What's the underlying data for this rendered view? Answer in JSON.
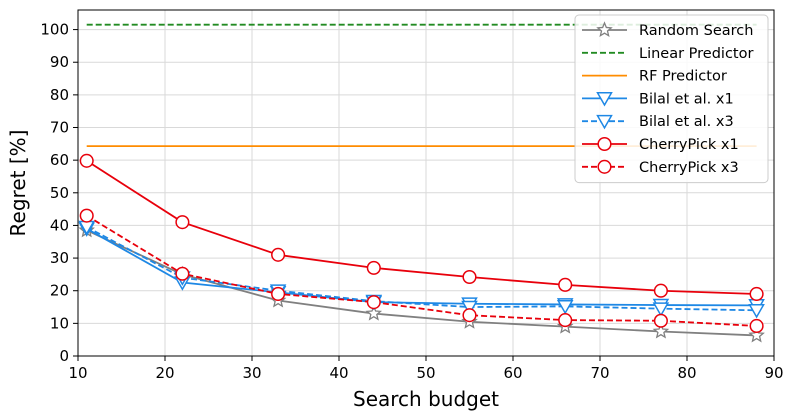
{
  "chart_data": {
    "type": "line",
    "title": "",
    "xlabel": "Search budget",
    "ylabel": "Regret [%]",
    "xlim": [
      10,
      90
    ],
    "ylim": [
      0,
      106
    ],
    "xticks": [
      10,
      20,
      30,
      40,
      50,
      60,
      70,
      80,
      90
    ],
    "yticks": [
      0,
      10,
      20,
      30,
      40,
      50,
      60,
      70,
      80,
      90,
      100
    ],
    "grid": true,
    "legend_position": "top-right",
    "series": [
      {
        "name": "Random Search",
        "color": "#808080",
        "dash": "solid",
        "marker": "star",
        "x": [
          11,
          22,
          33,
          44,
          55,
          66,
          77,
          88
        ],
        "y": [
          38.5,
          25,
          17,
          13,
          10.5,
          9,
          7.5,
          6.3
        ]
      },
      {
        "name": "Linear Predictor",
        "color": "#228B22",
        "dash": "dashed",
        "marker": "none",
        "x": [
          11,
          88
        ],
        "y": [
          101.5,
          101.5
        ]
      },
      {
        "name": "RF Predictor",
        "color": "#FF8C00",
        "dash": "solid",
        "marker": "none",
        "x": [
          11,
          88
        ],
        "y": [
          64.3,
          64.3
        ]
      },
      {
        "name": "Bilal et al. x1",
        "color": "#1E88E5",
        "dash": "solid",
        "marker": "triangle-down",
        "x": [
          11,
          22,
          33,
          44,
          55,
          66,
          77,
          88
        ],
        "y": [
          39,
          22.5,
          19.5,
          16.5,
          16,
          15.8,
          15.6,
          15.5
        ]
      },
      {
        "name": "Bilal et al. x3",
        "color": "#1E88E5",
        "dash": "dashed",
        "marker": "triangle-down",
        "x": [
          11,
          22,
          33,
          44,
          55,
          66,
          77,
          88
        ],
        "y": [
          39.5,
          24,
          20,
          16.8,
          15,
          15.2,
          14.5,
          14
        ]
      },
      {
        "name": "CherryPick x1",
        "color": "#E8000B",
        "dash": "solid",
        "marker": "circle",
        "x": [
          11,
          22,
          33,
          44,
          55,
          66,
          77,
          88
        ],
        "y": [
          59.8,
          41,
          31,
          27,
          24.2,
          21.8,
          20,
          19
        ]
      },
      {
        "name": "CherryPick x3",
        "color": "#E8000B",
        "dash": "dashed",
        "marker": "circle",
        "x": [
          11,
          22,
          33,
          44,
          55,
          66,
          77,
          88
        ],
        "y": [
          43,
          25.2,
          19,
          16.5,
          12.5,
          11,
          10.8,
          9.2
        ]
      }
    ]
  }
}
